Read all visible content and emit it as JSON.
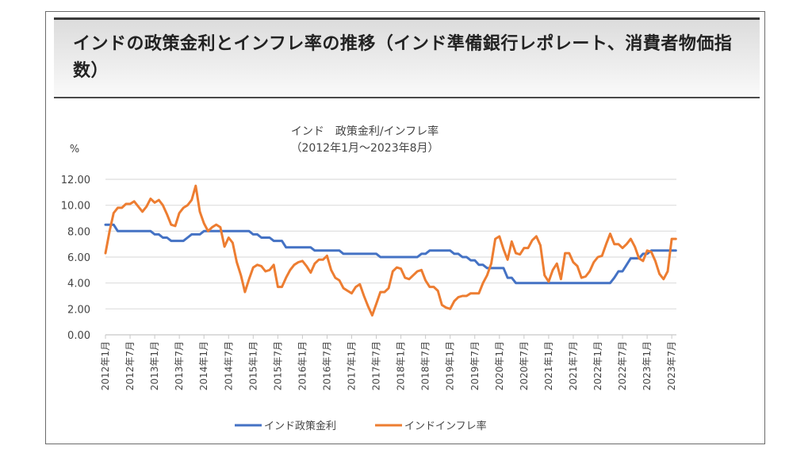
{
  "page": {
    "heading": "インドの政策金利とインフレ率の推移（インド準備銀行レポレート、消費者物価指数）"
  },
  "chart_data": {
    "type": "line",
    "title": "インド　政策金利/インフレ率",
    "subtitle": "（2012年1月～2023年8月）",
    "ylabel": "%",
    "xlabel": "",
    "ylim": [
      0,
      12
    ],
    "yticks": [
      "0.00",
      "2.00",
      "4.00",
      "6.00",
      "8.00",
      "10.00",
      "12.00"
    ],
    "ytick_values": [
      0,
      2,
      4,
      6,
      8,
      10,
      12
    ],
    "grid": true,
    "legend_position": "bottom",
    "x_start": "2012-01",
    "x_tick_labels": [
      "2012年1月",
      "2012年7月",
      "2013年1月",
      "2013年7月",
      "2014年1月",
      "2014年7月",
      "2015年1月",
      "2015年7月",
      "2016年1月",
      "2016年7月",
      "2017年1月",
      "2017年7月",
      "2018年1月",
      "2018年7月",
      "2019年1月",
      "2019年7月",
      "2020年1月",
      "2020年7月",
      "2021年1月",
      "2021年7月",
      "2022年1月",
      "2022年7月",
      "2023年1月",
      "2023年7月"
    ],
    "series": [
      {
        "name": "インド政策金利",
        "color": "#4472c4",
        "values": [
          8.5,
          8.5,
          8.5,
          8.0,
          8.0,
          8.0,
          8.0,
          8.0,
          8.0,
          8.0,
          8.0,
          8.0,
          7.75,
          7.75,
          7.5,
          7.5,
          7.25,
          7.25,
          7.25,
          7.25,
          7.5,
          7.75,
          7.75,
          7.75,
          8.0,
          8.0,
          8.0,
          8.0,
          8.0,
          8.0,
          8.0,
          8.0,
          8.0,
          8.0,
          8.0,
          8.0,
          7.75,
          7.75,
          7.5,
          7.5,
          7.5,
          7.25,
          7.25,
          7.25,
          6.75,
          6.75,
          6.75,
          6.75,
          6.75,
          6.75,
          6.75,
          6.5,
          6.5,
          6.5,
          6.5,
          6.5,
          6.5,
          6.5,
          6.25,
          6.25,
          6.25,
          6.25,
          6.25,
          6.25,
          6.25,
          6.25,
          6.25,
          6.0,
          6.0,
          6.0,
          6.0,
          6.0,
          6.0,
          6.0,
          6.0,
          6.0,
          6.0,
          6.25,
          6.25,
          6.5,
          6.5,
          6.5,
          6.5,
          6.5,
          6.5,
          6.25,
          6.25,
          6.0,
          6.0,
          5.75,
          5.75,
          5.4,
          5.4,
          5.15,
          5.15,
          5.15,
          5.15,
          5.15,
          4.4,
          4.4,
          4.0,
          4.0,
          4.0,
          4.0,
          4.0,
          4.0,
          4.0,
          4.0,
          4.0,
          4.0,
          4.0,
          4.0,
          4.0,
          4.0,
          4.0,
          4.0,
          4.0,
          4.0,
          4.0,
          4.0,
          4.0,
          4.0,
          4.0,
          4.0,
          4.4,
          4.9,
          4.9,
          5.4,
          5.9,
          5.9,
          5.9,
          6.25,
          6.25,
          6.5,
          6.5,
          6.5,
          6.5,
          6.5,
          6.5,
          6.5
        ]
      },
      {
        "name": "インドインフレ率",
        "color": "#ed7d31",
        "values": [
          6.3,
          8.0,
          9.4,
          9.8,
          9.8,
          10.1,
          10.1,
          10.3,
          9.9,
          9.5,
          9.9,
          10.5,
          10.2,
          10.4,
          10.0,
          9.3,
          8.5,
          8.4,
          9.4,
          9.8,
          10.0,
          10.4,
          11.5,
          9.5,
          8.6,
          8.0,
          8.3,
          8.5,
          8.3,
          6.8,
          7.5,
          7.1,
          5.6,
          4.6,
          3.3,
          4.3,
          5.2,
          5.4,
          5.3,
          4.9,
          5.0,
          5.4,
          3.7,
          3.7,
          4.4,
          5.0,
          5.4,
          5.6,
          5.7,
          5.3,
          4.8,
          5.5,
          5.8,
          5.8,
          6.1,
          5.0,
          4.4,
          4.2,
          3.6,
          3.4,
          3.2,
          3.7,
          3.9,
          3.0,
          2.2,
          1.5,
          2.4,
          3.3,
          3.3,
          3.6,
          4.9,
          5.2,
          5.1,
          4.4,
          4.3,
          4.6,
          4.9,
          5.0,
          4.2,
          3.7,
          3.7,
          3.4,
          2.3,
          2.1,
          2.0,
          2.6,
          2.9,
          3.0,
          3.0,
          3.2,
          3.2,
          3.2,
          4.0,
          4.6,
          5.5,
          7.4,
          7.6,
          6.6,
          5.8,
          7.2,
          6.3,
          6.2,
          6.7,
          6.7,
          7.3,
          7.6,
          6.9,
          4.6,
          4.1,
          5.0,
          5.5,
          4.3,
          6.3,
          6.3,
          5.6,
          5.3,
          4.4,
          4.5,
          4.9,
          5.6,
          6.0,
          6.1,
          7.0,
          7.8,
          7.0,
          7.0,
          6.7,
          7.0,
          7.4,
          6.8,
          5.9,
          5.7,
          6.5,
          6.4,
          5.7,
          4.7,
          4.3,
          4.9,
          7.4,
          7.4
        ]
      }
    ]
  }
}
